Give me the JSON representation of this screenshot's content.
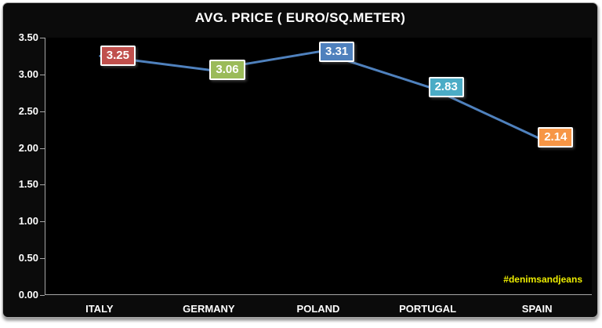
{
  "chart_data": {
    "type": "line",
    "title": "AVG. PRICE ( EURO/SQ.METER)",
    "categories": [
      "ITALY",
      "GERMANY",
      "POLAND",
      "PORTUGAL",
      "SPAIN"
    ],
    "values": [
      3.25,
      3.06,
      3.31,
      2.83,
      2.14
    ],
    "point_labels": [
      "3.25",
      "3.06",
      "3.31",
      "2.83",
      "2.14"
    ],
    "point_label_colors": [
      "#C0504D",
      "#9BBB59",
      "#4F81BD",
      "#4BACC6",
      "#F79646"
    ],
    "line_color": "#4F81BD",
    "ylim": [
      0,
      3.5
    ],
    "y_tick_step": 0.5,
    "y_tick_labels": [
      "3.50",
      "3.00",
      "2.50",
      "2.00",
      "1.50",
      "1.00",
      "0.50",
      "0.00"
    ],
    "grid": false,
    "legend": "none",
    "xlabel": "",
    "ylabel": "",
    "background_color": "#000000",
    "frame_color": "#0b0b0b",
    "axis_color": "#a6a6a6",
    "text_color": "#FFFFFF",
    "watermark": {
      "text": "#denimsandjeans",
      "color": "#EDED00"
    }
  }
}
